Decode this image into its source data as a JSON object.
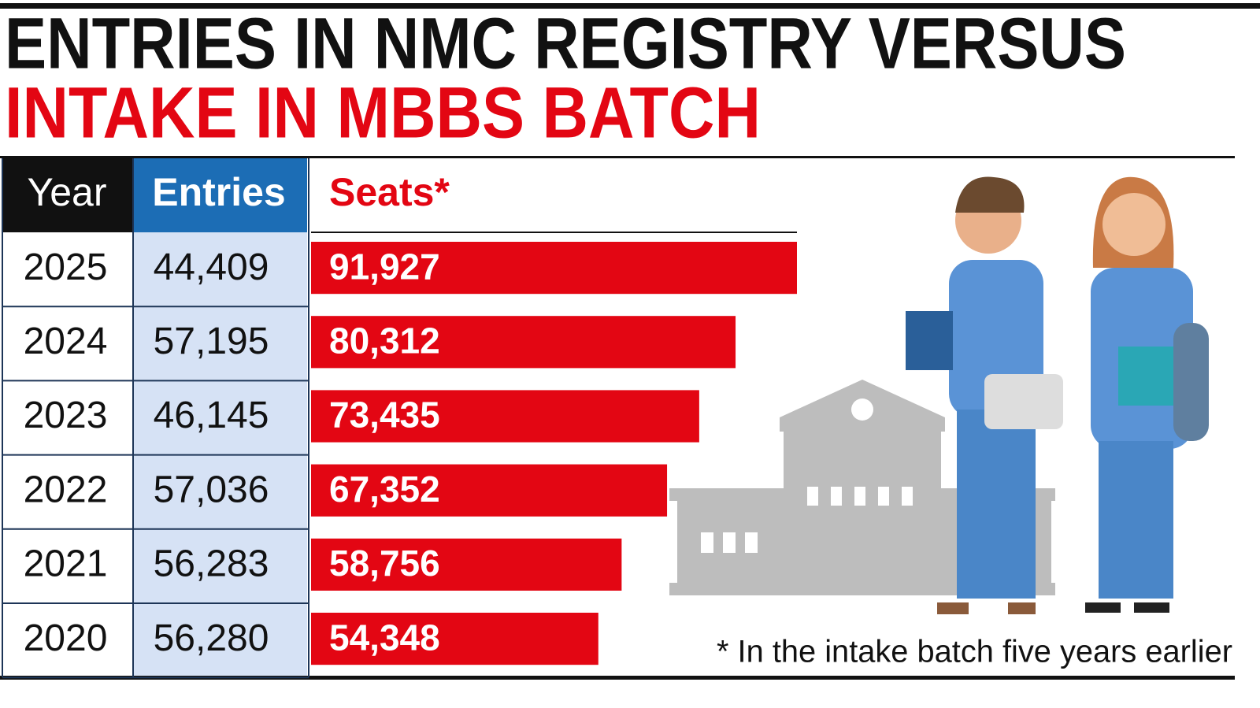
{
  "chart_data": {
    "type": "bar",
    "title": "ENTRIES IN NMC REGISTRY VERSUS",
    "subtitle": "INTAKE IN MBBS BATCH",
    "category_header": "Year",
    "categories": [
      "2025",
      "2024",
      "2023",
      "2022",
      "2021",
      "2020"
    ],
    "series": [
      {
        "name": "Entries",
        "color": "#1c6db5",
        "values": [
          44409,
          57195,
          46145,
          57036,
          56283,
          56280
        ],
        "value_labels": [
          "44,409",
          "57,195",
          "46,145",
          "57,036",
          "56,283",
          "56,280"
        ]
      },
      {
        "name": "Seats*",
        "color": "#e30613",
        "values": [
          91927,
          80312,
          73435,
          67352,
          58756,
          54348
        ],
        "value_labels": [
          "91,927",
          "80,312",
          "73,435",
          "67,352",
          "58,756",
          "54,348"
        ]
      }
    ],
    "footnote": "* In the intake batch five years earlier"
  }
}
